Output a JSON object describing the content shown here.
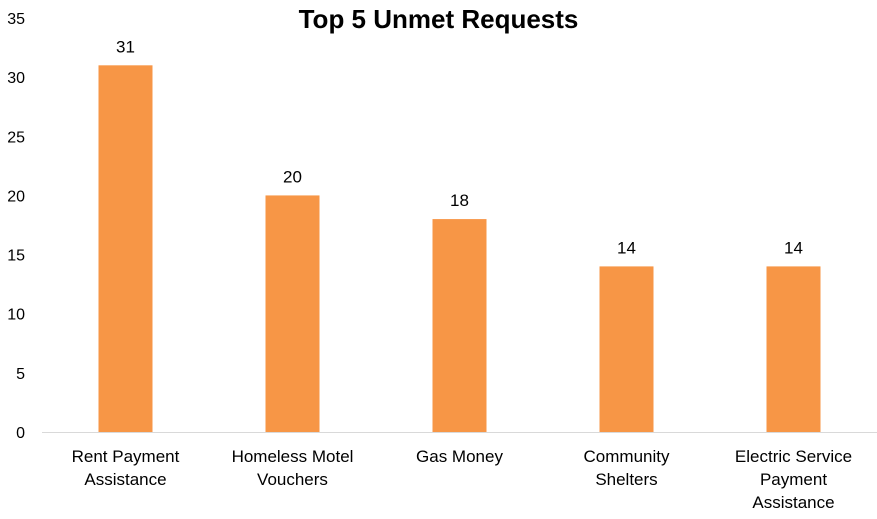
{
  "chart_data": {
    "type": "bar",
    "title": "Top 5 Unmet Requests",
    "xlabel": "",
    "ylabel": "",
    "categories": [
      [
        "Rent Payment",
        "Assistance"
      ],
      [
        "Homeless Motel",
        "Vouchers"
      ],
      [
        "Gas Money"
      ],
      [
        "Community",
        "Shelters"
      ],
      [
        "Electric Service",
        "Payment",
        "Assistance"
      ]
    ],
    "values": [
      31,
      20,
      18,
      14,
      14
    ],
    "data_labels": [
      "31",
      "20",
      "18",
      "14",
      "14"
    ],
    "ylim": [
      0,
      35
    ],
    "yticks": [
      0,
      5,
      10,
      15,
      20,
      25,
      30,
      35
    ],
    "ytick_labels": [
      "0",
      "5",
      "10",
      "15",
      "20",
      "25",
      "30",
      "35"
    ],
    "grid": false,
    "legend": "none",
    "bar_color": "#F79646",
    "axis_color": "#D9D9D9",
    "text_color": "#000000"
  }
}
